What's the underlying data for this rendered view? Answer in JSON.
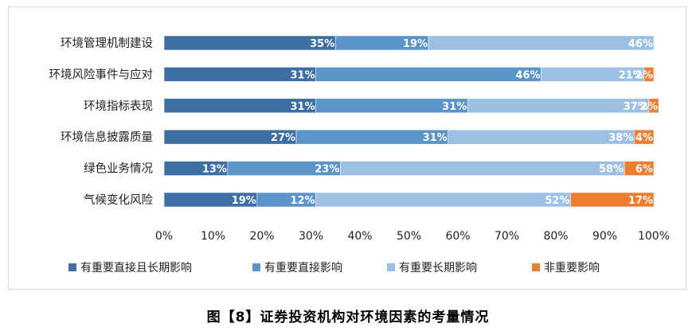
{
  "caption": "图【8】证券投资机构对环境因素的考量情况",
  "chart_data": {
    "type": "bar",
    "orientation": "horizontal",
    "stacked": "percent",
    "categories": [
      "环境管理机制建设",
      "环境风险事件与应对",
      "环境指标表现",
      "环境信息披露质量",
      "绿色业务情况",
      "气候变化风险"
    ],
    "series": [
      {
        "name": "有重要直接且长期影响",
        "color": "#3d6fa5",
        "values": [
          35,
          31,
          31,
          27,
          13,
          19
        ],
        "labels": [
          "35%",
          "31%",
          "31%",
          "27%",
          "13%",
          "19%"
        ]
      },
      {
        "name": "有重要直接影响",
        "color": "#5b93cb",
        "values": [
          19,
          46,
          31,
          31,
          23,
          12
        ],
        "labels": [
          "19%",
          "46%",
          "31%",
          "31%",
          "23%",
          "12%"
        ]
      },
      {
        "name": "有重要长期影响",
        "color": "#9bc0e4",
        "values": [
          46,
          21,
          37,
          38,
          58,
          52
        ],
        "labels": [
          "46%",
          "21%",
          "37%",
          "38%",
          "58%",
          "52%"
        ]
      },
      {
        "name": "非重要影响",
        "color": "#ed7d31",
        "values": [
          0,
          2,
          2,
          4,
          6,
          17
        ],
        "labels": [
          "",
          "2%",
          "2%",
          "4%",
          "6%",
          "17%"
        ]
      }
    ],
    "xlim": [
      0,
      100
    ],
    "x_ticks": [
      "0%",
      "10%",
      "20%",
      "30%",
      "40%",
      "50%",
      "60%",
      "70%",
      "80%",
      "90%",
      "100%"
    ],
    "grid": false,
    "legend": "bottom"
  }
}
